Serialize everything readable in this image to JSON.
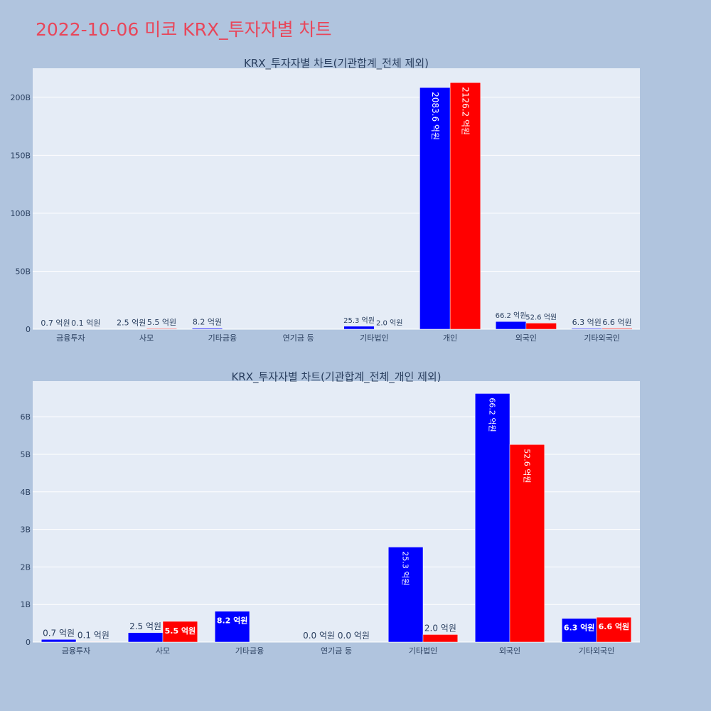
{
  "title": "2022-10-06 미코 KRX_투자자별 차트",
  "colors": {
    "buy": "#0000ff",
    "sell": "#ff0000",
    "plot_bg": "#e5ecf6",
    "page_bg": "#b0c4de",
    "title": "#e8465a"
  },
  "chart_data": [
    {
      "type": "bar",
      "title": "KRX_투자자별 차트(기관합계_전체 제외)",
      "categories": [
        "금융투자",
        "사모",
        "기타금융",
        "연기금 등",
        "기타법인",
        "개인",
        "외국인",
        "기타외국인"
      ],
      "series": [
        {
          "values": [
            0.07,
            0.25,
            0.82,
            0,
            2.53,
            208.36,
            6.62,
            0.63
          ],
          "labels": [
            "0.7 억원",
            "2.5 억원",
            "8.2 억원",
            "",
            "25.3 억원",
            "2083.6 억원",
            "66.2 억원",
            "6.3 억원"
          ]
        },
        {
          "values": [
            0.01,
            0.55,
            0,
            0,
            0.2,
            212.62,
            5.26,
            0.66
          ],
          "labels": [
            "0.1 억원",
            "5.5 억원",
            "",
            "",
            "2.0 억원",
            "2126.2 억원",
            "52.6 억원",
            "6.6 억원"
          ]
        }
      ],
      "ylim": [
        0,
        225
      ],
      "yticks": [
        0,
        50,
        100,
        150,
        200
      ],
      "ytick_labels": [
        "0",
        "50B",
        "100B",
        "150B",
        "200B"
      ],
      "grid": true
    },
    {
      "type": "bar",
      "title": "KRX_투자자별 차트(기관합계_전체_개인 제외)",
      "categories": [
        "금융투자",
        "사모",
        "기타금융",
        "연기금 등",
        "기타법인",
        "외국인",
        "기타외국인"
      ],
      "series": [
        {
          "values": [
            0.07,
            0.25,
            0.82,
            0,
            2.53,
            6.62,
            0.63
          ],
          "labels": [
            "0.7 억원",
            "2.5 억원",
            "8.2 억원",
            "0.0 억원",
            "25.3 억원",
            "66.2 억원",
            "6.3 억원"
          ]
        },
        {
          "values": [
            0.01,
            0.55,
            0,
            0,
            0.2,
            5.26,
            0.66
          ],
          "labels": [
            "0.1 억원",
            "5.5 억원",
            "",
            "0.0 억원",
            "2.0 억원",
            "52.6 억원",
            "6.6 억원"
          ]
        }
      ],
      "ylim": [
        0,
        6.95
      ],
      "yticks": [
        0,
        1,
        2,
        3,
        4,
        5,
        6
      ],
      "ytick_labels": [
        "0",
        "1B",
        "2B",
        "3B",
        "4B",
        "5B",
        "6B"
      ],
      "grid": true
    }
  ]
}
